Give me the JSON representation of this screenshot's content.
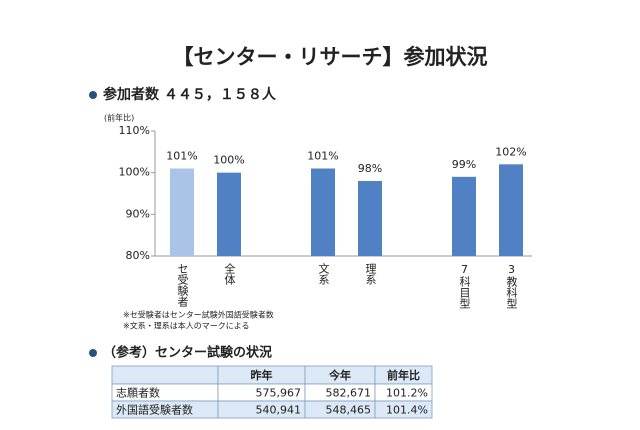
{
  "title": "【センター・リサーチ】参加状況",
  "subtitle": "参加者数 ４４５，１５８人",
  "chart_data": {
    "type": "bar",
    "y_axis_label": "(前年比)",
    "categories": [
      "セ受験者",
      "全体",
      "文系",
      "理系",
      "7科目型",
      "3教科型"
    ],
    "values": [
      101,
      100,
      101,
      98,
      99,
      102
    ],
    "value_labels": [
      "101%",
      "100%",
      "101%",
      "98%",
      "99%",
      "102%"
    ],
    "colors": [
      "#a9c4e6",
      "#4f81c4",
      "#4f81c4",
      "#4f81c4",
      "#4f81c4",
      "#4f81c4"
    ],
    "ylim": [
      80,
      110
    ],
    "yticks": [
      {
        "value": 80,
        "label": "80%"
      },
      {
        "value": 90,
        "label": "90%"
      },
      {
        "value": 100,
        "label": "100%"
      },
      {
        "value": 110,
        "label": "110%"
      }
    ],
    "grid": false
  },
  "notes": [
    "※セ受験者はセンター試験外国語受験者数",
    "※文系・理系は本人のマークによる"
  ],
  "section_title": "（参考）センター試験の状況",
  "table": {
    "columns": [
      "昨年",
      "今年",
      "前年比"
    ],
    "rows": [
      {
        "label": "志願者数",
        "cells": [
          "575,967",
          "582,671",
          "101.2%"
        ]
      },
      {
        "label": "外国語受験者数",
        "cells": [
          "540,941",
          "548,465",
          "101.4%"
        ]
      }
    ]
  }
}
